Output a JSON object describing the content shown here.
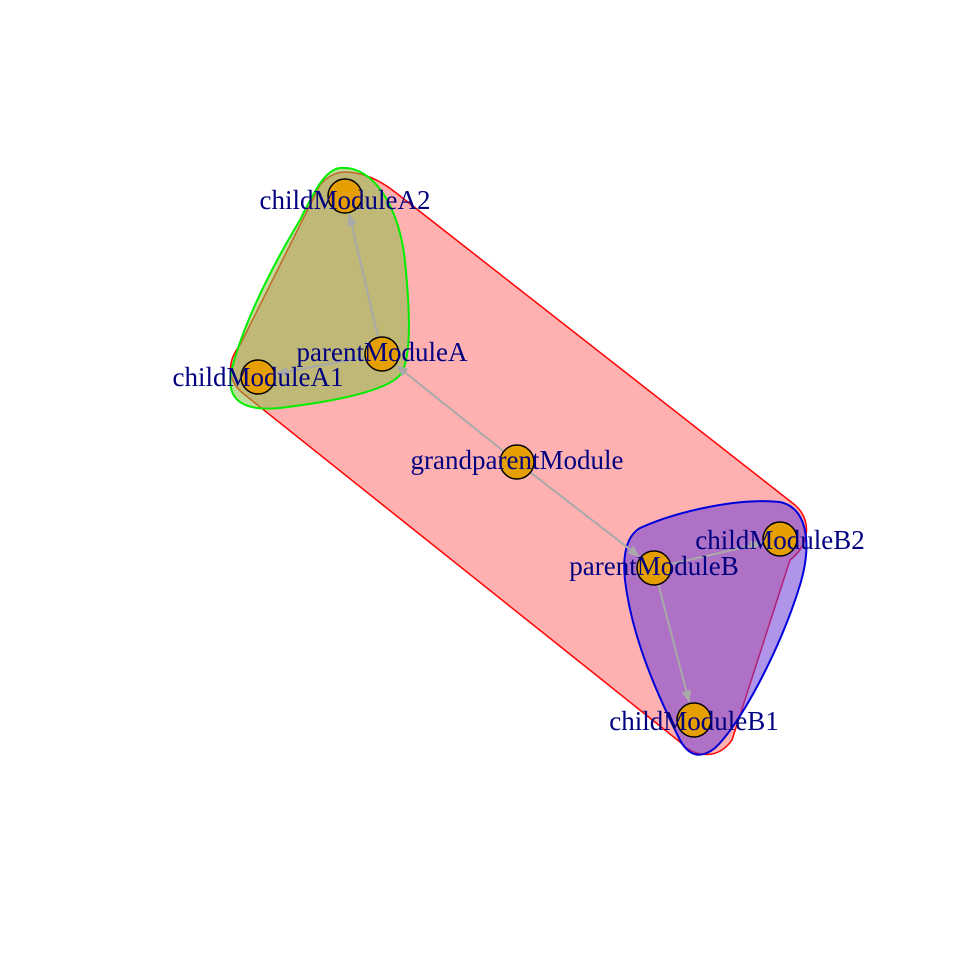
{
  "colors": {
    "background": "#ffffff",
    "node_fill": "#E69F00",
    "node_stroke": "#000000",
    "edge": "#A9A9A9",
    "label": "#000080",
    "group_outer_fill": "#FFB1B1",
    "group_outer_stroke": "#FF0000",
    "group_a_fill": "rgba(138,190,70,0.55)",
    "group_a_stroke": "#00EE00",
    "group_b_fill": "rgba(110,60,215,0.55)",
    "group_b_stroke": "#0000DD"
  },
  "nodes": [
    {
      "id": "grandparentModule",
      "label": "grandparentModule"
    },
    {
      "id": "parentModuleA",
      "label": "parentModuleA"
    },
    {
      "id": "parentModuleB",
      "label": "parentModuleB"
    },
    {
      "id": "childModuleA1",
      "label": "childModuleA1"
    },
    {
      "id": "childModuleA2",
      "label": "childModuleA2"
    },
    {
      "id": "childModuleB1",
      "label": "childModuleB1"
    },
    {
      "id": "childModuleB2",
      "label": "childModuleB2"
    }
  ],
  "edges": [
    {
      "from": "grandparentModule",
      "to": "parentModuleA"
    },
    {
      "from": "grandparentModule",
      "to": "parentModuleB"
    },
    {
      "from": "parentModuleA",
      "to": "childModuleA1"
    },
    {
      "from": "parentModuleA",
      "to": "childModuleA2"
    },
    {
      "from": "parentModuleB",
      "to": "childModuleB1"
    },
    {
      "from": "parentModuleB",
      "to": "childModuleB2"
    }
  ],
  "groups": [
    {
      "id": "outer",
      "members": [
        "grandparentModule",
        "parentModuleA",
        "parentModuleB",
        "childModuleA1",
        "childModuleA2",
        "childModuleB1",
        "childModuleB2"
      ]
    },
    {
      "id": "group-a",
      "members": [
        "parentModuleA",
        "childModuleA1",
        "childModuleA2"
      ]
    },
    {
      "id": "group-b",
      "members": [
        "parentModuleB",
        "childModuleB1",
        "childModuleB2"
      ]
    }
  ]
}
